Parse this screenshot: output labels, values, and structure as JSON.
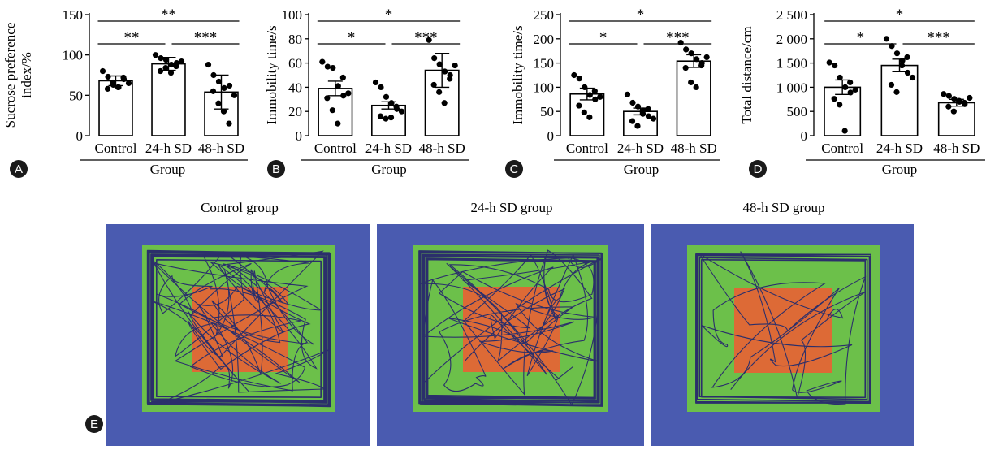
{
  "chart_data": [
    {
      "type": "bar",
      "panel": "A",
      "categories": [
        "Control",
        "24-h SD",
        "48-h SD"
      ],
      "values": [
        68,
        89,
        54
      ],
      "error": [
        6,
        8,
        21
      ],
      "points": [
        [
          80,
          73,
          63,
          60,
          70,
          58,
          66,
          60,
          72,
          65
        ],
        [
          100,
          96,
          94,
          88,
          90,
          80,
          84,
          78,
          86,
          92
        ],
        [
          88,
          75,
          67,
          59,
          62,
          55,
          40,
          30,
          15,
          50
        ]
      ],
      "ylabel": "Sucrose preference index/%",
      "ylabel_lines": [
        "Sucrose preference",
        "index/%"
      ],
      "xlabel": "Group",
      "ylim": [
        0,
        150
      ],
      "yticks": [
        0,
        50,
        100,
        150
      ],
      "significance": [
        {
          "from": 0,
          "to": 1,
          "label": "**"
        },
        {
          "from": 1,
          "to": 2,
          "label": "***"
        },
        {
          "from": 0,
          "to": 2,
          "label": "**"
        }
      ]
    },
    {
      "type": "bar",
      "panel": "B",
      "categories": [
        "Control",
        "24-h SD",
        "48-h SD"
      ],
      "values": [
        39,
        25,
        54
      ],
      "error": [
        6,
        3,
        14
      ],
      "points": [
        [
          61,
          57,
          56,
          41,
          33,
          31,
          21,
          10,
          48,
          35
        ],
        [
          44,
          40,
          32,
          27,
          22,
          16,
          14,
          15,
          24,
          20
        ],
        [
          79,
          64,
          59,
          53,
          50,
          42,
          36,
          27,
          47,
          58
        ]
      ],
      "ylabel": "Immobility time/s",
      "xlabel": "Group",
      "ylim": [
        0,
        100
      ],
      "yticks": [
        0,
        20,
        40,
        60,
        80,
        100
      ],
      "significance": [
        {
          "from": 0,
          "to": 1,
          "label": "*"
        },
        {
          "from": 1,
          "to": 2,
          "label": "***"
        },
        {
          "from": 0,
          "to": 2,
          "label": "*"
        }
      ]
    },
    {
      "type": "bar",
      "panel": "C",
      "categories": [
        "Control",
        "24-h SD",
        "48-h SD"
      ],
      "values": [
        86,
        50,
        154
      ],
      "error": [
        12,
        7,
        13
      ],
      "points": [
        [
          125,
          118,
          100,
          84,
          75,
          62,
          48,
          38,
          92,
          80
        ],
        [
          85,
          68,
          60,
          52,
          40,
          30,
          20,
          45,
          55,
          35
        ],
        [
          192,
          178,
          170,
          158,
          150,
          140,
          110,
          100,
          145,
          162
        ]
      ],
      "ylabel": "Immobility time/s",
      "xlabel": "Group",
      "ylim": [
        0,
        250
      ],
      "yticks": [
        0,
        50,
        100,
        150,
        200,
        250
      ],
      "significance": [
        {
          "from": 0,
          "to": 1,
          "label": "*"
        },
        {
          "from": 1,
          "to": 2,
          "label": "***"
        },
        {
          "from": 0,
          "to": 2,
          "label": "*"
        }
      ]
    },
    {
      "type": "bar",
      "panel": "D",
      "categories": [
        "Control",
        "24-h SD",
        "48-h SD"
      ],
      "values": [
        1000,
        1450,
        680
      ],
      "error": [
        150,
        130,
        70
      ],
      "points": [
        [
          1510,
          1450,
          1200,
          1000,
          890,
          760,
          640,
          100,
          1100,
          950
        ],
        [
          2000,
          1850,
          1700,
          1550,
          1300,
          1050,
          900,
          1450,
          1620,
          1200
        ],
        [
          860,
          820,
          760,
          700,
          650,
          600,
          500,
          720,
          680,
          780
        ]
      ],
      "ylabel": "Total distance/cm",
      "xlabel": "Group",
      "ylim": [
        0,
        2500
      ],
      "yticks": [
        0,
        500,
        1000,
        1500,
        2000,
        2500
      ],
      "ytick_labels": [
        "0",
        "500",
        "1 000",
        "1 500",
        "2 000",
        "2 500"
      ],
      "significance": [
        {
          "from": 0,
          "to": 1,
          "label": "*"
        },
        {
          "from": 1,
          "to": 2,
          "label": "***"
        },
        {
          "from": 0,
          "to": 2,
          "label": "*"
        }
      ]
    }
  ],
  "tracks": {
    "panel": "E",
    "titles": [
      "Control group",
      "24-h SD group",
      "48-h SD group"
    ],
    "colors": {
      "background": "#4a5bb0",
      "field": "#6cc04a",
      "center": "#dd6a36",
      "path": "#2b2f6b"
    }
  },
  "colors": {
    "badge": "#1a1a1a",
    "bar_fill": "#ffffff",
    "ink": "#000000"
  }
}
